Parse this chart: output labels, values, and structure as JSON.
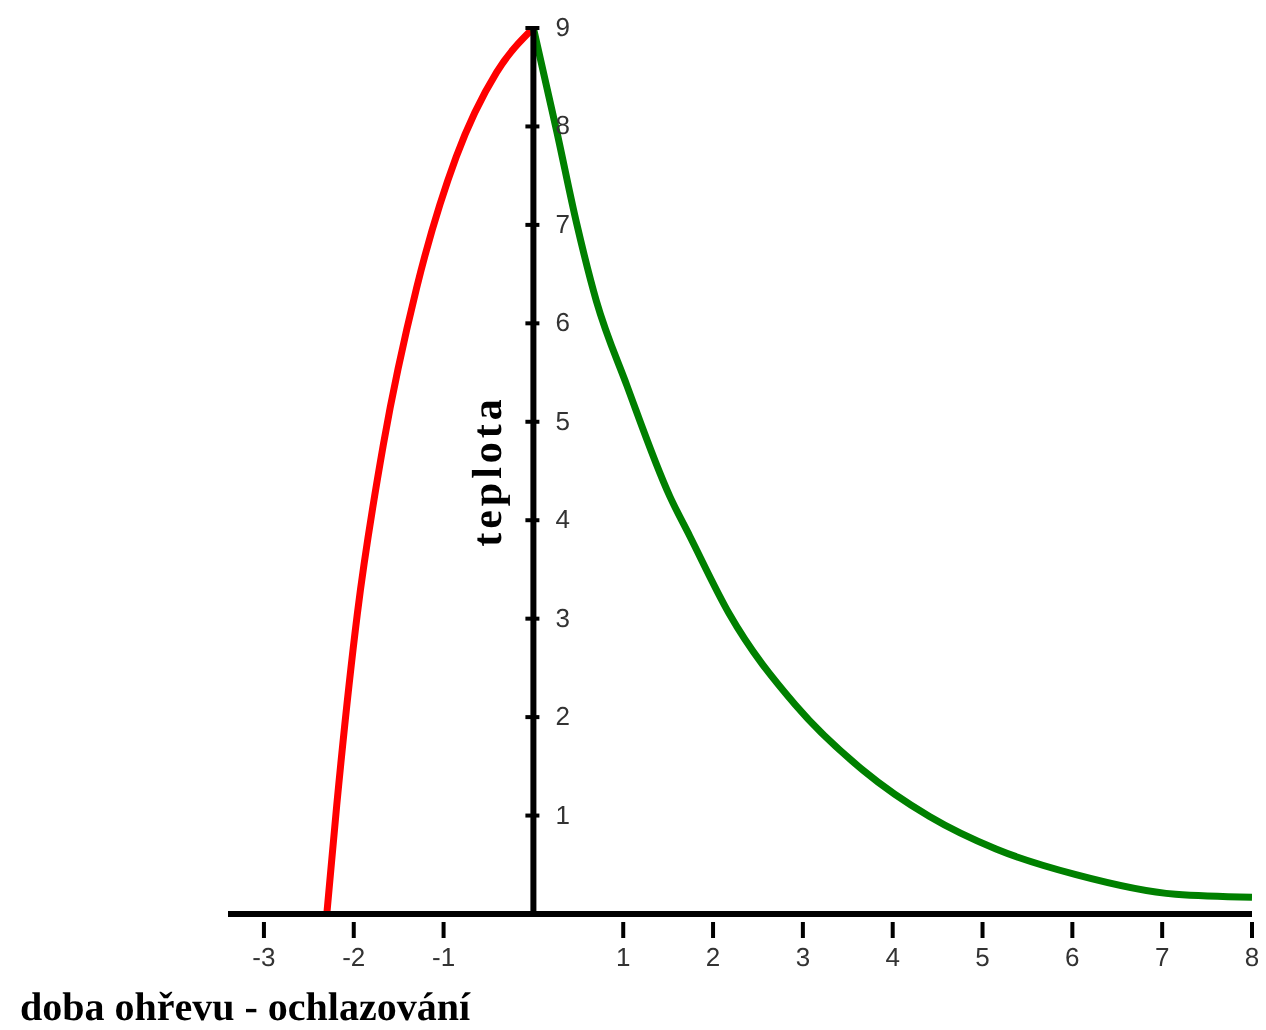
{
  "chart_data": {
    "type": "line",
    "xlabel": "doba ohřevu - ochlazování",
    "ylabel": "teplota",
    "xlim": [
      -3.4,
      8
    ],
    "xticks": [
      -3,
      -2,
      -1,
      1,
      2,
      3,
      4,
      5,
      6,
      7,
      8
    ],
    "ylim": [
      0,
      9
    ],
    "yticks": [
      1,
      2,
      3,
      4,
      5,
      6,
      7,
      8,
      9
    ],
    "marker": "none",
    "line_style": "solid",
    "series": [
      {
        "color": "#ff0000",
        "x": [
          -2.3,
          -2.19,
          -1.96,
          -1.67,
          -1.3,
          -0.86,
          -0.41,
          0
        ],
        "values": [
          0,
          1.1,
          3.05,
          4.77,
          6.36,
          7.69,
          8.55,
          9
        ]
      },
      {
        "color": "#008000",
        "x": [
          0,
          0.26,
          0.48,
          0.7,
          1.04,
          1.52,
          1.74,
          2.18,
          2.92,
          3.67,
          4.41,
          5.15,
          6.04,
          7.15,
          8
        ],
        "values": [
          9,
          7.95,
          7.02,
          6.23,
          5.37,
          4.24,
          3.84,
          3.05,
          2.12,
          1.46,
          0.99,
          0.66,
          0.4,
          0.2,
          0.17
        ]
      }
    ]
  }
}
